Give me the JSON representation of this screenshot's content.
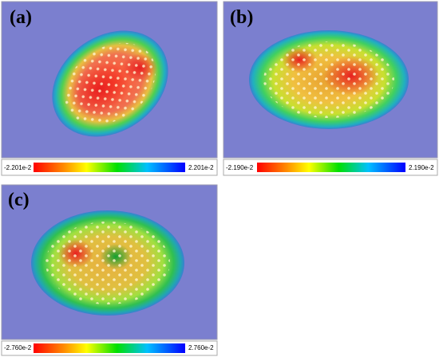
{
  "panels": [
    {
      "label": "(a)",
      "colorbar": {
        "min": "-2.201e-2",
        "max": "2.201e-2"
      }
    },
    {
      "label": "(b)",
      "colorbar": {
        "min": "-2.190e-2",
        "max": "2.190e-2"
      }
    },
    {
      "label": "(c)",
      "colorbar": {
        "min": "-2.760e-2",
        "max": "2.760e-2"
      }
    }
  ]
}
